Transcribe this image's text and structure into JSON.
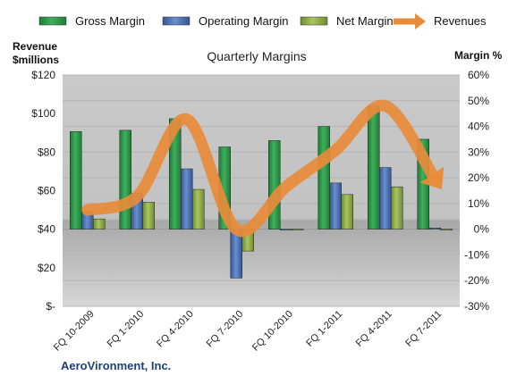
{
  "chart_data": {
    "type": "bar",
    "title": "Quarterly Margins",
    "left_axis_label_lines": [
      "Revenue",
      "$millions"
    ],
    "right_axis_label": "Margin %",
    "footer": "AeroVironment, Inc.",
    "categories": [
      "FQ 10-2009",
      "FQ 1-2010",
      "FQ 4-2010",
      "FQ 7-2010",
      "FQ 10-2010",
      "FQ 1-2011",
      "FQ 4-2011",
      "FQ 7-2011"
    ],
    "left_axis": {
      "min": 0,
      "max": 120,
      "step": 20,
      "ticks": [
        "$-",
        "$20",
        "$40",
        "$60",
        "$80",
        "$100",
        "$120"
      ]
    },
    "right_axis": {
      "min": -30,
      "max": 60,
      "step": 10,
      "ticks": [
        "-30%",
        "-20%",
        "-10%",
        "0%",
        "10%",
        "20%",
        "30%",
        "40%",
        "50%",
        "60%"
      ]
    },
    "series": [
      {
        "name": "Gross Margin",
        "axis": "right",
        "kind": "bar",
        "color": "#2e9a4b",
        "values": [
          38,
          38.5,
          43,
          32,
          34.5,
          40,
          48,
          35
        ]
      },
      {
        "name": "Operating Margin",
        "axis": "right",
        "kind": "bar",
        "color": "#4a6fb5",
        "values": [
          7,
          14,
          23.5,
          -19,
          0,
          18,
          24,
          0.5
        ]
      },
      {
        "name": "Net Margin",
        "axis": "right",
        "kind": "bar",
        "color": "#8eab45",
        "values": [
          4,
          10.5,
          15.5,
          -8.5,
          0,
          13.5,
          16.5,
          0
        ]
      },
      {
        "name": "Revenues",
        "axis": "left",
        "kind": "arrow-line",
        "color": "#e88b3a",
        "values": [
          50,
          57,
          97,
          40,
          62,
          81,
          104,
          66
        ]
      }
    ],
    "legend_position": "top",
    "grid": true
  }
}
